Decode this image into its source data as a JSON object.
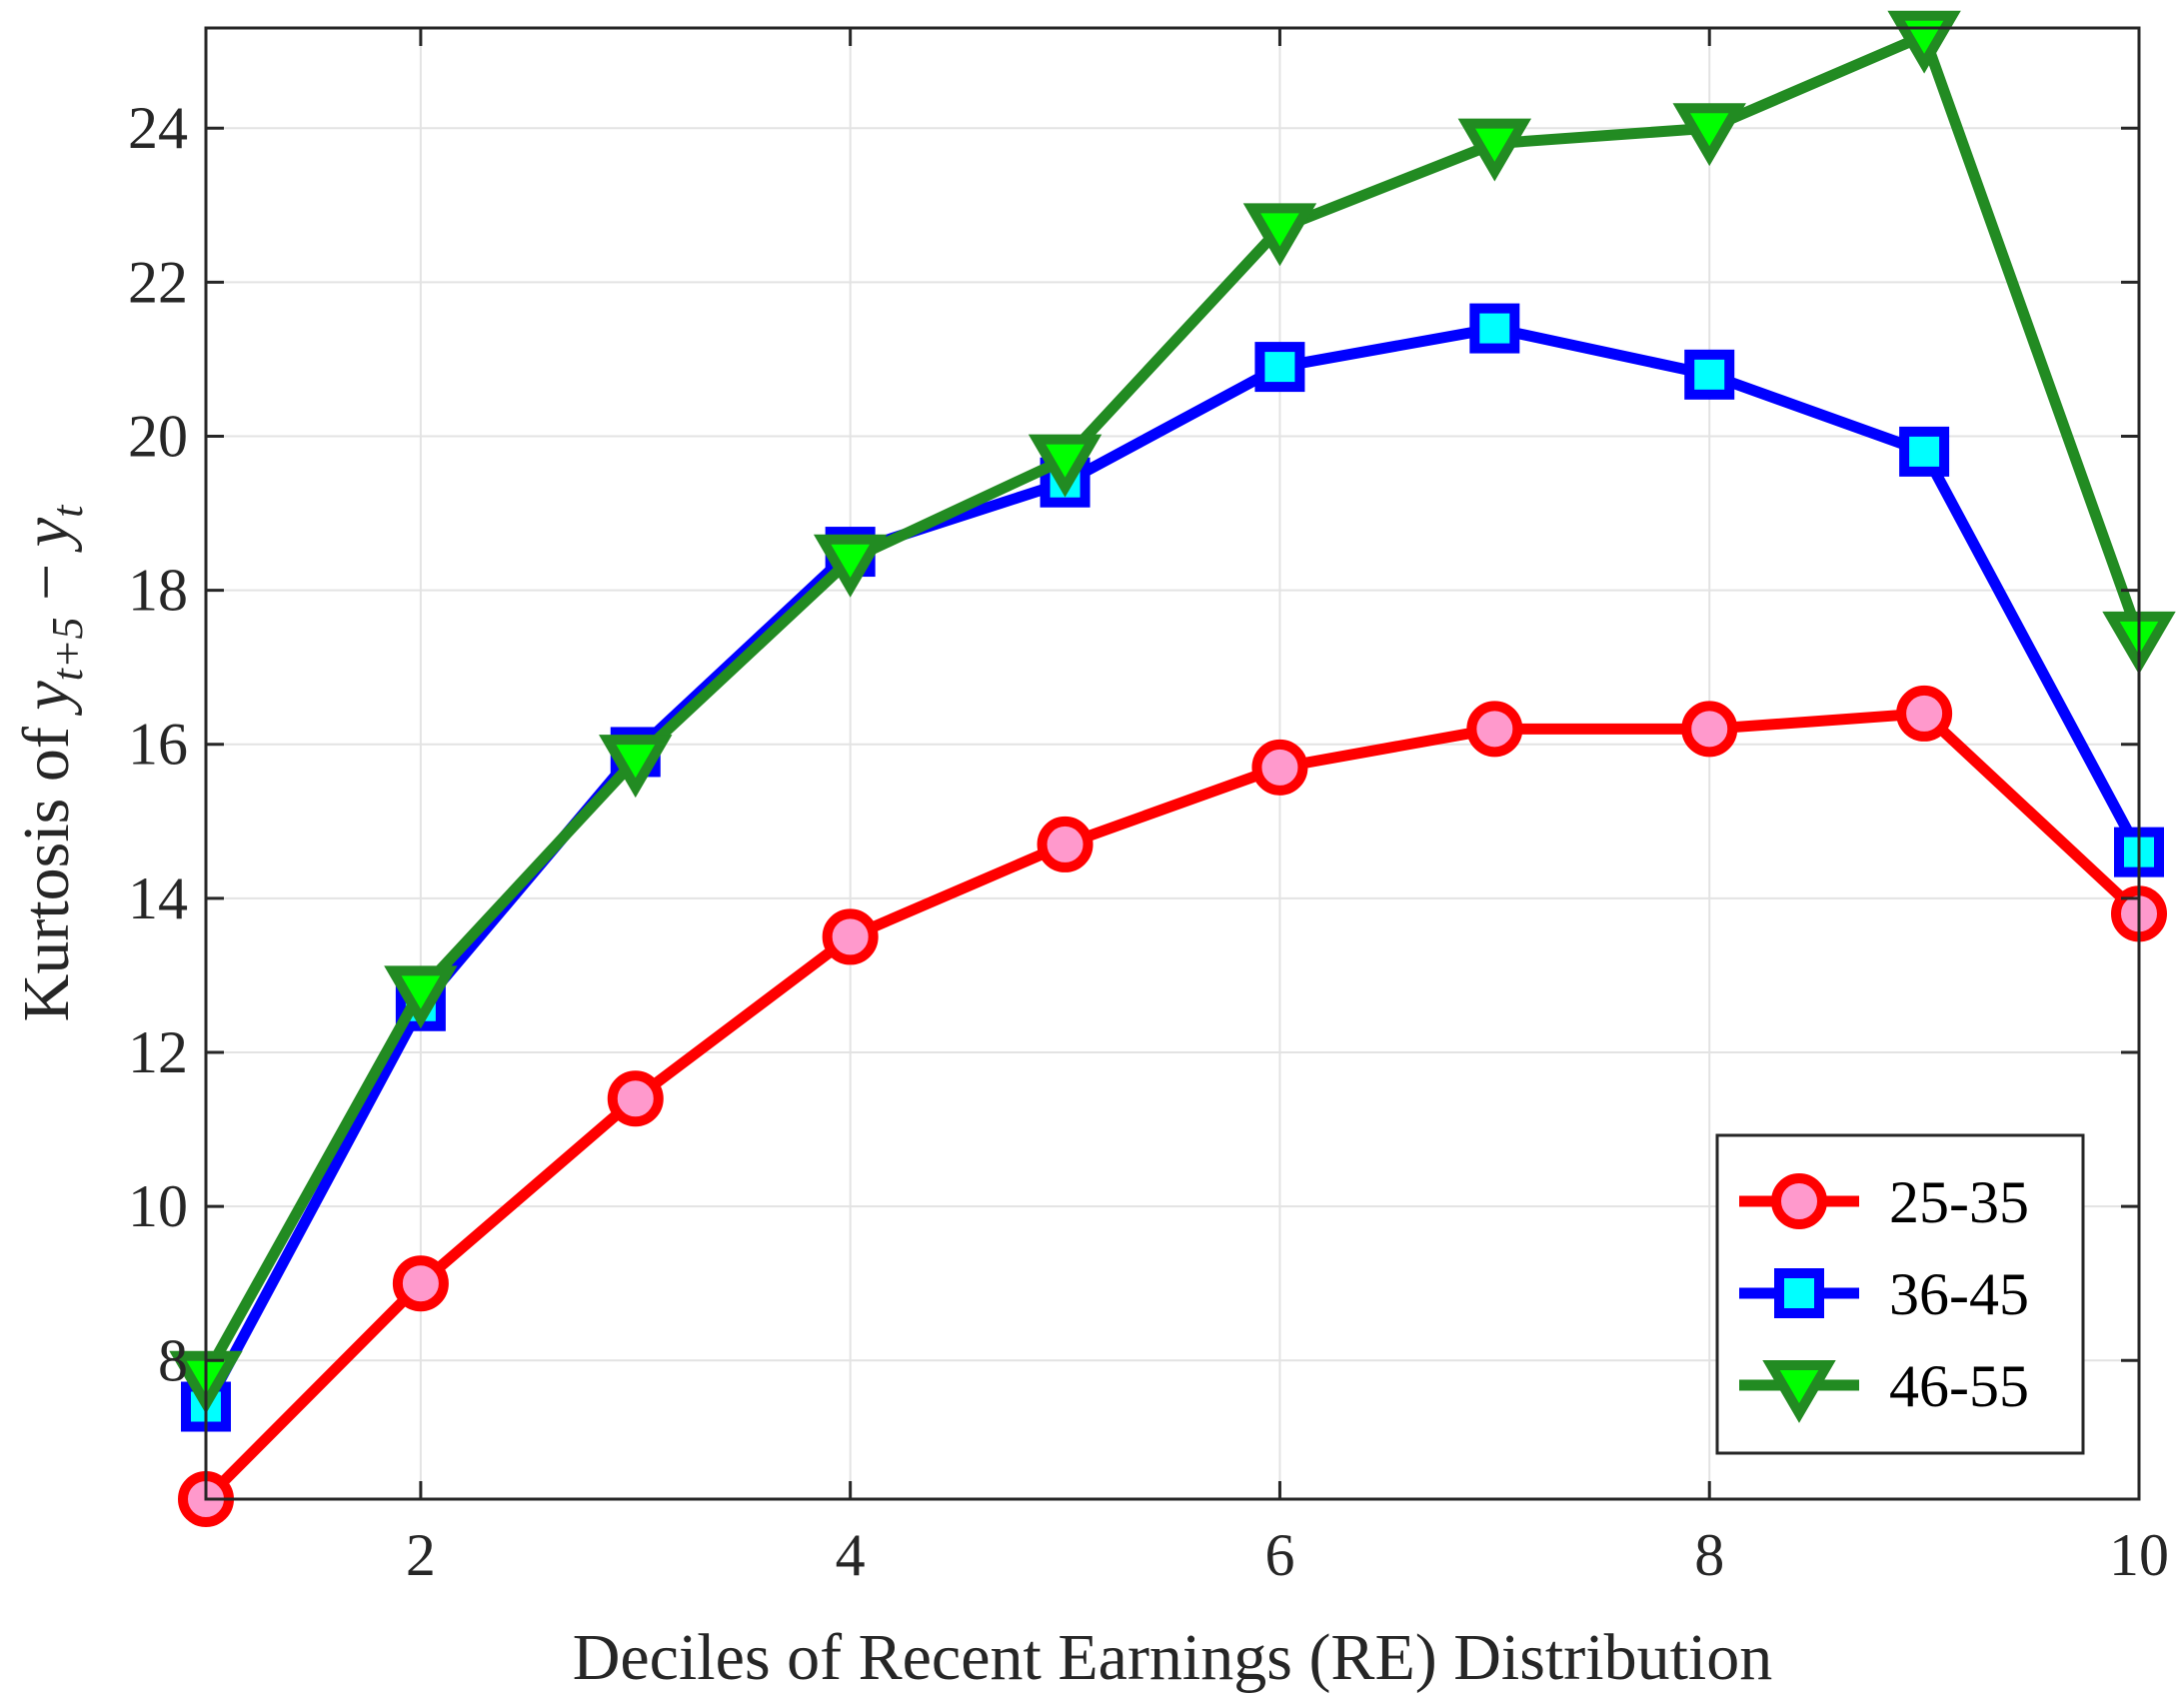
{
  "chart_data": {
    "type": "line",
    "title": "",
    "xlabel": "Deciles of Recent Earnings (RE) Distribution",
    "ylabel": {
      "prefix": "Kurtosis of ",
      "var1": "y",
      "sub1": "t+5",
      "op": " − ",
      "var2": "y",
      "sub2": "t"
    },
    "xlim": [
      1,
      10
    ],
    "ylim": [
      6.2,
      25.3
    ],
    "xticks": [
      2,
      4,
      6,
      8,
      10
    ],
    "yticks": [
      8,
      10,
      12,
      14,
      16,
      18,
      20,
      22,
      24
    ],
    "grid": true,
    "legend_position": "bottom-right",
    "x": [
      1,
      2,
      3,
      4,
      5,
      6,
      7,
      8,
      9,
      10
    ],
    "series": [
      {
        "name": "25-35",
        "values": [
          6.2,
          9.0,
          11.4,
          13.5,
          14.7,
          15.7,
          16.2,
          16.2,
          16.4,
          13.8
        ],
        "line_color": "#ff0000",
        "marker_fill": "#ff99cc",
        "marker": "circle"
      },
      {
        "name": "36-45",
        "values": [
          7.4,
          12.6,
          15.9,
          18.5,
          19.4,
          20.9,
          21.4,
          20.8,
          19.8,
          14.6
        ],
        "line_color": "#0000ff",
        "marker_fill": "#00ffff",
        "marker": "square"
      },
      {
        "name": "46-55",
        "values": [
          7.8,
          12.8,
          15.8,
          18.4,
          19.7,
          22.7,
          23.8,
          24.0,
          25.2,
          17.4
        ],
        "line_color": "#228b22",
        "marker_fill": "#00ff00",
        "marker": "triangle-down"
      }
    ]
  }
}
